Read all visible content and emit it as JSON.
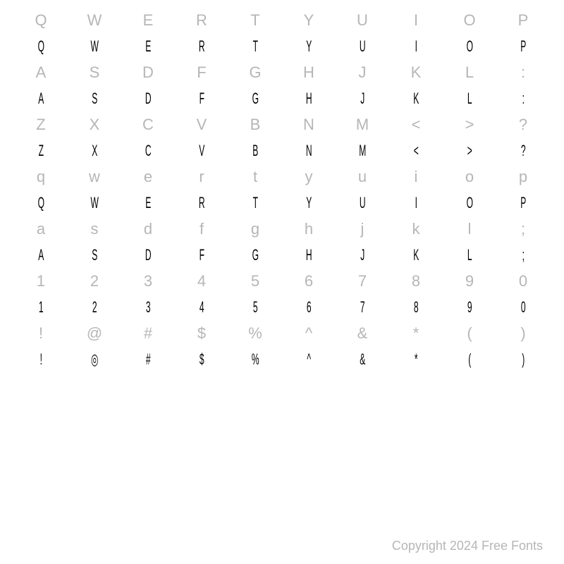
{
  "rows": [
    {
      "type": "ref",
      "chars": [
        "Q",
        "W",
        "E",
        "R",
        "T",
        "Y",
        "U",
        "I",
        "O",
        "P"
      ]
    },
    {
      "type": "sample",
      "chars": [
        "Q",
        "W",
        "E",
        "R",
        "T",
        "Y",
        "U",
        "I",
        "O",
        "P"
      ]
    },
    {
      "type": "ref",
      "chars": [
        "A",
        "S",
        "D",
        "F",
        "G",
        "H",
        "J",
        "K",
        "L",
        ":"
      ]
    },
    {
      "type": "sample",
      "chars": [
        "A",
        "S",
        "D",
        "F",
        "G",
        "H",
        "J",
        "K",
        "L",
        ":"
      ]
    },
    {
      "type": "ref",
      "chars": [
        "Z",
        "X",
        "C",
        "V",
        "B",
        "N",
        "M",
        "<",
        ">",
        "?"
      ]
    },
    {
      "type": "sample",
      "chars": [
        "Z",
        "X",
        "C",
        "V",
        "B",
        "N",
        "M",
        "<",
        ">",
        "?"
      ]
    },
    {
      "type": "ref",
      "chars": [
        "q",
        "w",
        "e",
        "r",
        "t",
        "y",
        "u",
        "i",
        "o",
        "p"
      ]
    },
    {
      "type": "sample",
      "chars": [
        "Q",
        "W",
        "E",
        "R",
        "T",
        "Y",
        "U",
        "I",
        "O",
        "P"
      ]
    },
    {
      "type": "ref",
      "chars": [
        "a",
        "s",
        "d",
        "f",
        "g",
        "h",
        "j",
        "k",
        "l",
        ";"
      ]
    },
    {
      "type": "sample",
      "chars": [
        "A",
        "S",
        "D",
        "F",
        "G",
        "H",
        "J",
        "K",
        "L",
        ";"
      ]
    },
    {
      "type": "ref",
      "chars": [
        "1",
        "2",
        "3",
        "4",
        "5",
        "6",
        "7",
        "8",
        "9",
        "0"
      ]
    },
    {
      "type": "sample",
      "chars": [
        "1",
        "2",
        "3",
        "4",
        "5",
        "6",
        "7",
        "8",
        "9",
        "0"
      ]
    },
    {
      "type": "ref",
      "chars": [
        "!",
        "@",
        "#",
        "$",
        "%",
        "^",
        "&",
        "*",
        "(",
        ")"
      ]
    },
    {
      "type": "sample",
      "chars": [
        "!",
        "◎",
        "#",
        "$",
        "%",
        "^",
        "&",
        "*",
        "(",
        ")"
      ]
    }
  ],
  "copyright": "Copyright 2024 Free Fonts",
  "colors": {
    "ref": "#b6b6b6",
    "sample": "#000000",
    "background": "#ffffff"
  }
}
